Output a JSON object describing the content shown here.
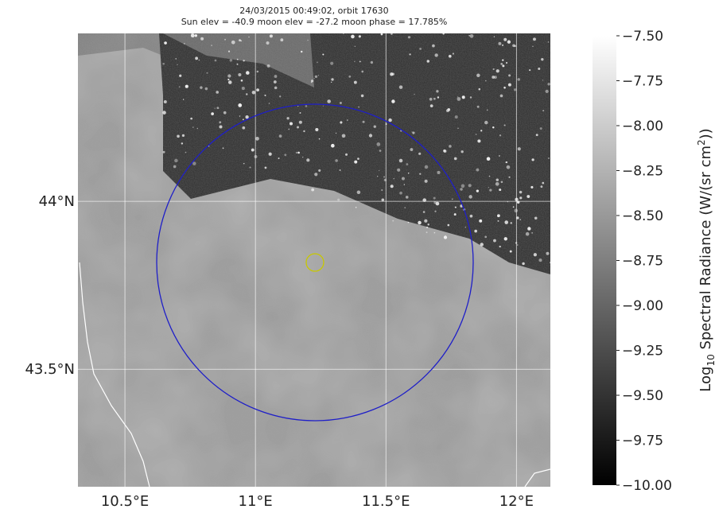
{
  "chart_data": {
    "type": "map",
    "title": [
      "24/03/2015 00:49:02, orbit 17630",
      "Sun elev = -40.9 moon elev = -27.2 moon phase = 17.785%"
    ],
    "xlim": [
      10.32,
      12.13
    ],
    "ylim": [
      43.15,
      44.5
    ],
    "xticks": [
      {
        "value": 10.5,
        "label": "10.5°E"
      },
      {
        "value": 11,
        "label": "11°E"
      },
      {
        "value": 11.5,
        "label": "11.5°E"
      },
      {
        "value": 12,
        "label": "12°E"
      }
    ],
    "yticks": [
      {
        "value": 43.5,
        "label": "43.5°N"
      },
      {
        "value": 44,
        "label": "44°N"
      }
    ],
    "grid": true,
    "colorbar": {
      "clim": [
        -10,
        -7.5
      ],
      "colors": [
        "#000000",
        "#ffffff"
      ],
      "label": [
        "Log",
        "10",
        " Spectral Radiance (W/(sr cm",
        "2",
        "))"
      ],
      "ticks": [
        {
          "value": -7.5,
          "label": "−7.50"
        },
        {
          "value": -7.75,
          "label": "−7.75"
        },
        {
          "value": -8,
          "label": "−8.00"
        },
        {
          "value": -8.25,
          "label": "−8.25"
        },
        {
          "value": -8.5,
          "label": "−8.50"
        },
        {
          "value": -8.75,
          "label": "−8.75"
        },
        {
          "value": -9,
          "label": "−9.00"
        },
        {
          "value": -9.25,
          "label": "−9.25"
        },
        {
          "value": -9.5,
          "label": "−9.50"
        },
        {
          "value": -9.75,
          "label": "−9.75"
        },
        {
          "value": -10,
          "label": "−10.00"
        }
      ]
    }
  }
}
